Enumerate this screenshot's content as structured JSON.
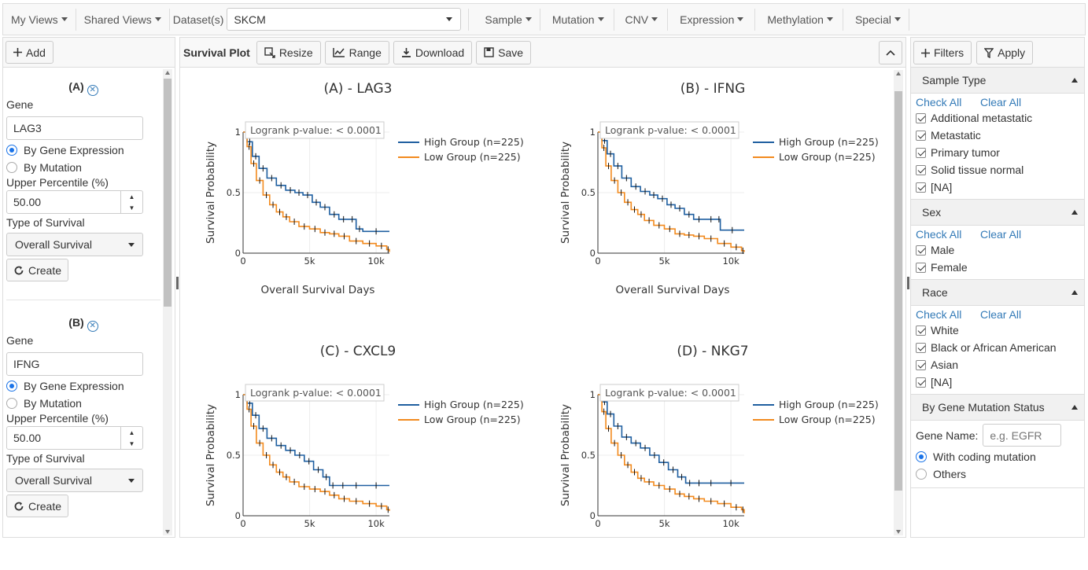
{
  "topbar": {
    "my_views": "My Views",
    "shared_views": "Shared Views",
    "dataset_label": "Dataset(s)",
    "dataset_value": "SKCM",
    "menus": [
      "Sample",
      "Mutation",
      "CNV",
      "Expression",
      "Methylation",
      "Special"
    ]
  },
  "left_panel": {
    "add_label": "Add",
    "gene_blocks": [
      {
        "title": "(A)",
        "gene_label": "Gene",
        "gene_value": "LAG3",
        "radio1": "By Gene Expression",
        "radio2": "By Mutation",
        "percentile_label": "Upper Percentile (%)",
        "percentile_value": "50.00",
        "survival_label": "Type of Survival",
        "survival_value": "Overall Survival",
        "create_label": "Create"
      },
      {
        "title": "(B)",
        "gene_label": "Gene",
        "gene_value": "IFNG",
        "radio1": "By Gene Expression",
        "radio2": "By Mutation",
        "percentile_label": "Upper Percentile (%)",
        "percentile_value": "50.00",
        "survival_label": "Type of Survival",
        "survival_value": "Overall Survival",
        "create_label": "Create"
      }
    ]
  },
  "center": {
    "title": "Survival Plot",
    "buttons": {
      "resize": "Resize",
      "range": "Range",
      "download": "Download",
      "save": "Save"
    }
  },
  "colors": {
    "high": "#1f5fa0",
    "low": "#f28a1e"
  },
  "chart_data": [
    {
      "type": "line",
      "title": "(A) - LAG3",
      "xlabel": "Overall Survival Days",
      "ylabel": "Survival Probability",
      "pvalue": "Logrank p-value: < 0.0001",
      "xticks": [
        "0",
        "5k",
        "10k"
      ],
      "yticks": [
        "0",
        "0.5",
        "1"
      ],
      "xlim": [
        0,
        11000
      ],
      "ylim": [
        0,
        1
      ],
      "legend": "top-right",
      "series": [
        {
          "name": "High Group (n=225)",
          "x": [
            0,
            300,
            700,
            1200,
            1800,
            2500,
            3200,
            3900,
            4500,
            5200,
            5800,
            6500,
            7200,
            7900,
            8500,
            9000,
            11000
          ],
          "y": [
            1.0,
            0.92,
            0.8,
            0.7,
            0.62,
            0.56,
            0.52,
            0.5,
            0.48,
            0.42,
            0.38,
            0.32,
            0.28,
            0.28,
            0.2,
            0.18,
            0.18
          ]
        },
        {
          "name": "Low Group (n=225)",
          "x": [
            0,
            300,
            600,
            1000,
            1500,
            2000,
            2500,
            3000,
            3500,
            4200,
            5000,
            5800,
            6500,
            7200,
            8000,
            9000,
            10000,
            10800,
            11000
          ],
          "y": [
            1.0,
            0.88,
            0.74,
            0.6,
            0.48,
            0.4,
            0.34,
            0.3,
            0.26,
            0.22,
            0.2,
            0.17,
            0.16,
            0.14,
            0.1,
            0.08,
            0.06,
            0.03,
            0.01
          ]
        }
      ]
    },
    {
      "type": "line",
      "title": "(B) - IFNG",
      "xlabel": "Overall Survival Days",
      "ylabel": "Survival Probability",
      "pvalue": "Logrank p-value: < 0.0001",
      "xticks": [
        "0",
        "5k",
        "10k"
      ],
      "yticks": [
        "0",
        "0.5",
        "1"
      ],
      "xlim": [
        0,
        11000
      ],
      "ylim": [
        0,
        1
      ],
      "legend": "top-right",
      "series": [
        {
          "name": "High Group (n=225)",
          "x": [
            0,
            300,
            700,
            1200,
            1800,
            2500,
            3200,
            3900,
            4500,
            5200,
            5800,
            6500,
            7200,
            8000,
            9000,
            9200,
            11000
          ],
          "y": [
            1.0,
            0.93,
            0.82,
            0.72,
            0.62,
            0.55,
            0.51,
            0.48,
            0.45,
            0.4,
            0.37,
            0.32,
            0.28,
            0.28,
            0.28,
            0.19,
            0.19
          ]
        },
        {
          "name": "Low Group (n=225)",
          "x": [
            0,
            300,
            600,
            1000,
            1500,
            2000,
            2500,
            3000,
            3500,
            4200,
            5000,
            5800,
            6500,
            7200,
            8000,
            9000,
            10000,
            10800,
            11000
          ],
          "y": [
            1.0,
            0.87,
            0.72,
            0.6,
            0.5,
            0.42,
            0.36,
            0.32,
            0.27,
            0.23,
            0.2,
            0.16,
            0.15,
            0.14,
            0.12,
            0.08,
            0.05,
            0.02,
            0.01
          ]
        }
      ]
    },
    {
      "type": "line",
      "title": "(C) - CXCL9",
      "xlabel": "",
      "ylabel": "Survival Probability",
      "pvalue": "Logrank p-value: < 0.0001",
      "xticks": [
        "0",
        "5k",
        "10k"
      ],
      "yticks": [
        "0",
        "0.5",
        "1"
      ],
      "xlim": [
        0,
        11000
      ],
      "ylim": [
        0,
        1
      ],
      "legend": "top-right",
      "series": [
        {
          "name": "High Group (n=225)",
          "x": [
            0,
            300,
            700,
            1200,
            1800,
            2500,
            3200,
            3900,
            4600,
            5300,
            6000,
            6500,
            7000,
            8000,
            9000,
            11000
          ],
          "y": [
            1.0,
            0.93,
            0.83,
            0.72,
            0.64,
            0.58,
            0.54,
            0.5,
            0.45,
            0.38,
            0.32,
            0.25,
            0.25,
            0.25,
            0.25,
            0.25
          ]
        },
        {
          "name": "Low Group (n=225)",
          "x": [
            0,
            300,
            600,
            1000,
            1500,
            2000,
            2500,
            3000,
            3500,
            4200,
            5000,
            5800,
            6500,
            7200,
            8000,
            9000,
            10000,
            10800,
            11000
          ],
          "y": [
            1.0,
            0.88,
            0.74,
            0.6,
            0.5,
            0.42,
            0.36,
            0.32,
            0.28,
            0.24,
            0.22,
            0.2,
            0.17,
            0.14,
            0.12,
            0.1,
            0.08,
            0.05,
            0.04
          ]
        }
      ]
    },
    {
      "type": "line",
      "title": "(D) - NKG7",
      "xlabel": "",
      "ylabel": "Survival Probability",
      "pvalue": "Logrank p-value: < 0.0001",
      "xticks": [
        "0",
        "5k",
        "10k"
      ],
      "yticks": [
        "0",
        "0.5",
        "1"
      ],
      "xlim": [
        0,
        11000
      ],
      "ylim": [
        0,
        1
      ],
      "legend": "top-right",
      "series": [
        {
          "name": "High Group (n=225)",
          "x": [
            0,
            300,
            700,
            1200,
            1800,
            2500,
            3200,
            3900,
            4600,
            5300,
            6000,
            6600,
            7200,
            8000,
            9000,
            11000
          ],
          "y": [
            1.0,
            0.94,
            0.84,
            0.74,
            0.65,
            0.6,
            0.56,
            0.5,
            0.44,
            0.38,
            0.32,
            0.27,
            0.27,
            0.27,
            0.27,
            0.27
          ]
        },
        {
          "name": "Low Group (n=225)",
          "x": [
            0,
            300,
            600,
            1000,
            1500,
            2000,
            2500,
            3000,
            3500,
            4200,
            5000,
            5800,
            6500,
            7200,
            8000,
            9000,
            10000,
            10800,
            11000
          ],
          "y": [
            1.0,
            0.86,
            0.72,
            0.6,
            0.5,
            0.42,
            0.36,
            0.31,
            0.28,
            0.25,
            0.22,
            0.18,
            0.16,
            0.14,
            0.12,
            0.1,
            0.07,
            0.05,
            0.02
          ]
        }
      ]
    }
  ],
  "right_panel": {
    "filters_label": "Filters",
    "apply_label": "Apply",
    "check_all": "Check All",
    "clear_all": "Clear All",
    "sections": [
      {
        "title": "Sample Type",
        "items": [
          "Additional metastatic",
          "Metastatic",
          "Primary tumor",
          "Solid tissue normal",
          "[NA]"
        ]
      },
      {
        "title": "Sex",
        "items": [
          "Male",
          "Female"
        ]
      },
      {
        "title": "Race",
        "items": [
          "White",
          "Black or African American",
          "Asian",
          "[NA]"
        ]
      }
    ],
    "mutation": {
      "title": "By Gene Mutation Status",
      "gene_name_label": "Gene Name:",
      "placeholder": "e.g. EGFR",
      "opt1": "With coding mutation",
      "opt2": "Others"
    }
  }
}
